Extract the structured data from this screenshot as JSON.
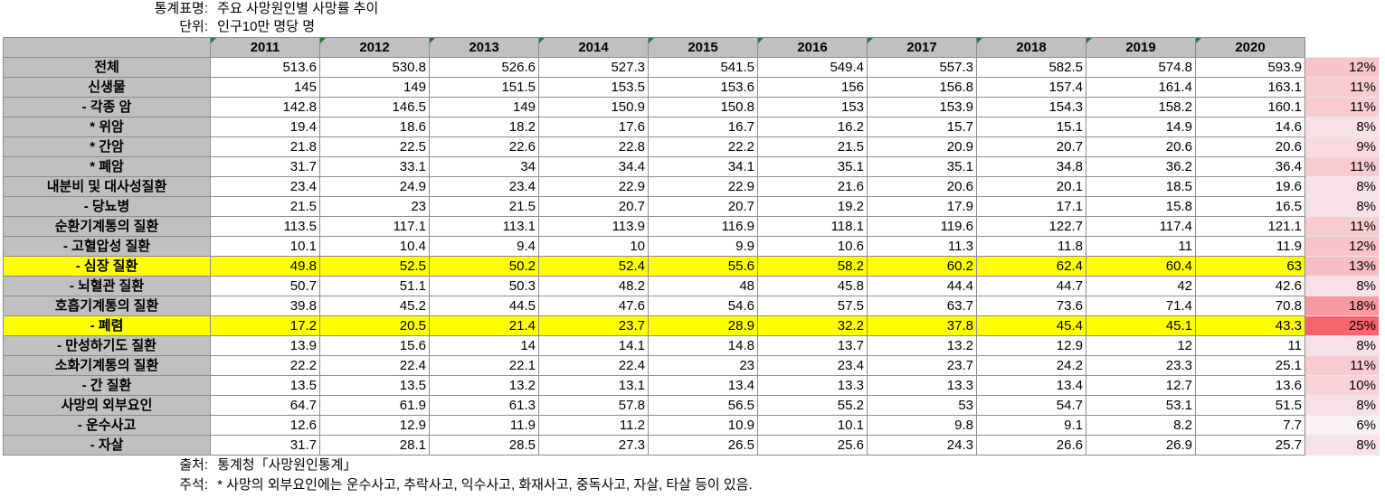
{
  "title_label": "통계표명:",
  "title_value": "주요 사망원인별 사망률 추이",
  "unit_label": "단위:",
  "unit_value": "인구10만 명당 명",
  "years": [
    "2011",
    "2012",
    "2013",
    "2014",
    "2015",
    "2016",
    "2017",
    "2018",
    "2019",
    "2020"
  ],
  "rows": [
    {
      "label": "전체",
      "values": [
        "513.6",
        "530.8",
        "526.6",
        "527.3",
        "541.5",
        "549.4",
        "557.3",
        "582.5",
        "574.8",
        "593.9"
      ],
      "pct": "12%",
      "highlight": false
    },
    {
      "label": "신생물",
      "values": [
        "145",
        "149",
        "151.5",
        "153.5",
        "153.6",
        "156",
        "156.8",
        "157.4",
        "161.4",
        "163.1"
      ],
      "pct": "11%",
      "highlight": false
    },
    {
      "label": "- 각종 암",
      "values": [
        "142.8",
        "146.5",
        "149",
        "150.9",
        "150.8",
        "153",
        "153.9",
        "154.3",
        "158.2",
        "160.1"
      ],
      "pct": "11%",
      "highlight": false
    },
    {
      "label": "* 위암",
      "values": [
        "19.4",
        "18.6",
        "18.2",
        "17.6",
        "16.7",
        "16.2",
        "15.7",
        "15.1",
        "14.9",
        "14.6"
      ],
      "pct": "8%",
      "highlight": false
    },
    {
      "label": "* 간암",
      "values": [
        "21.8",
        "22.5",
        "22.6",
        "22.8",
        "22.2",
        "21.5",
        "20.9",
        "20.7",
        "20.6",
        "20.6"
      ],
      "pct": "9%",
      "highlight": false
    },
    {
      "label": "* 폐암",
      "values": [
        "31.7",
        "33.1",
        "34",
        "34.4",
        "34.1",
        "35.1",
        "35.1",
        "34.8",
        "36.2",
        "36.4"
      ],
      "pct": "11%",
      "highlight": false
    },
    {
      "label": "내분비 및 대사성질환",
      "values": [
        "23.4",
        "24.9",
        "23.4",
        "22.9",
        "22.9",
        "21.6",
        "20.6",
        "20.1",
        "18.5",
        "19.6"
      ],
      "pct": "8%",
      "highlight": false
    },
    {
      "label": "- 당뇨병",
      "values": [
        "21.5",
        "23",
        "21.5",
        "20.7",
        "20.7",
        "19.2",
        "17.9",
        "17.1",
        "15.8",
        "16.5"
      ],
      "pct": "8%",
      "highlight": false
    },
    {
      "label": "순환기계통의 질환",
      "values": [
        "113.5",
        "117.1",
        "113.1",
        "113.9",
        "116.9",
        "118.1",
        "119.6",
        "122.7",
        "117.4",
        "121.1"
      ],
      "pct": "11%",
      "highlight": false
    },
    {
      "label": "- 고혈압성 질환",
      "values": [
        "10.1",
        "10.4",
        "9.4",
        "10",
        "9.9",
        "10.6",
        "11.3",
        "11.8",
        "11",
        "11.9"
      ],
      "pct": "12%",
      "highlight": false
    },
    {
      "label": "- 심장 질환",
      "values": [
        "49.8",
        "52.5",
        "50.2",
        "52.4",
        "55.6",
        "58.2",
        "60.2",
        "62.4",
        "60.4",
        "63"
      ],
      "pct": "13%",
      "highlight": true
    },
    {
      "label": "- 뇌혈관 질환",
      "values": [
        "50.7",
        "51.1",
        "50.3",
        "48.2",
        "48",
        "45.8",
        "44.4",
        "44.7",
        "42",
        "42.6"
      ],
      "pct": "8%",
      "highlight": false
    },
    {
      "label": "호흡기계통의 질환",
      "values": [
        "39.8",
        "45.2",
        "44.5",
        "47.6",
        "54.6",
        "57.5",
        "63.7",
        "73.6",
        "71.4",
        "70.8"
      ],
      "pct": "18%",
      "highlight": false
    },
    {
      "label": "- 폐렴",
      "values": [
        "17.2",
        "20.5",
        "21.4",
        "23.7",
        "28.9",
        "32.2",
        "37.8",
        "45.4",
        "45.1",
        "43.3"
      ],
      "pct": "25%",
      "highlight": true
    },
    {
      "label": "- 만성하기도 질환",
      "values": [
        "13.9",
        "15.6",
        "14",
        "14.1",
        "14.8",
        "13.7",
        "13.2",
        "12.9",
        "12",
        "11"
      ],
      "pct": "8%",
      "highlight": false
    },
    {
      "label": "소화기계통의 질환",
      "values": [
        "22.2",
        "22.4",
        "22.1",
        "22.4",
        "23",
        "23.4",
        "23.7",
        "24.2",
        "23.3",
        "25.1"
      ],
      "pct": "11%",
      "highlight": false
    },
    {
      "label": "- 간 질환",
      "values": [
        "13.5",
        "13.5",
        "13.2",
        "13.1",
        "13.4",
        "13.3",
        "13.3",
        "13.4",
        "12.7",
        "13.6"
      ],
      "pct": "10%",
      "highlight": false
    },
    {
      "label": "사망의 외부요인",
      "values": [
        "64.7",
        "61.9",
        "61.3",
        "57.8",
        "56.5",
        "55.2",
        "53",
        "54.7",
        "53.1",
        "51.5"
      ],
      "pct": "8%",
      "highlight": false
    },
    {
      "label": "- 운수사고",
      "values": [
        "12.6",
        "12.9",
        "11.9",
        "11.2",
        "10.9",
        "10.1",
        "9.8",
        "9.1",
        "8.2",
        "7.7"
      ],
      "pct": "6%",
      "highlight": false
    },
    {
      "label": "- 자살",
      "values": [
        "31.7",
        "28.1",
        "28.5",
        "27.3",
        "26.5",
        "25.6",
        "24.3",
        "26.6",
        "26.9",
        "25.7"
      ],
      "pct": "8%",
      "highlight": false
    }
  ],
  "source_label": "출처:",
  "source_value": "통계청「사망원인통계」",
  "note_label": "주석:",
  "note_value": "* 사망의 외부요인에는 운수사고, 추락사고, 익수사고, 화재사고, 중독사고, 자살, 타살 등이 있음."
}
